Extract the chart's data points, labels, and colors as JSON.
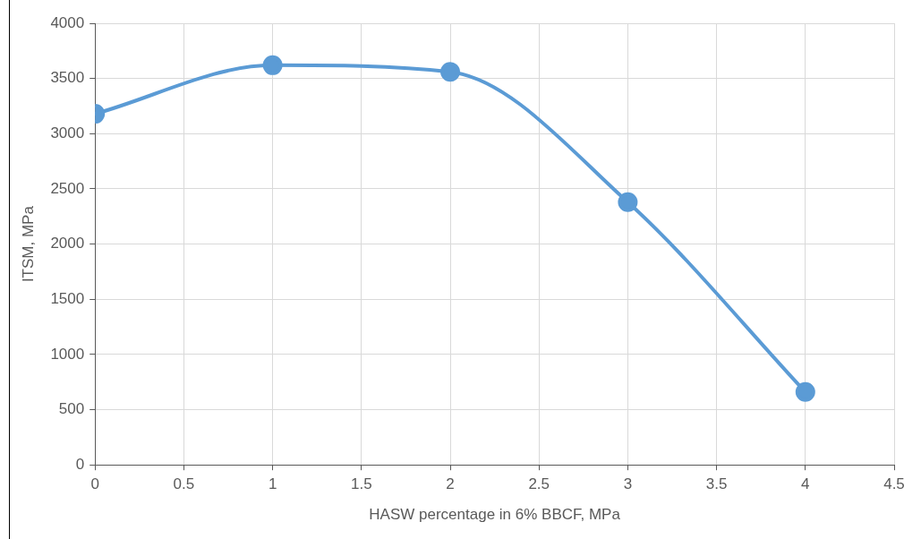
{
  "chart_data": {
    "type": "line",
    "xlabel": "HASW percentage in 6% BBCF, MPa",
    "ylabel": "ITSM, MPa",
    "x": [
      0,
      1,
      2,
      3,
      4
    ],
    "series": [
      {
        "color": "#5b9bd5",
        "values": [
          3180,
          3620,
          3560,
          2380,
          660
        ]
      }
    ],
    "xlim": [
      0,
      4.5
    ],
    "xticks": [
      0,
      0.5,
      1,
      1.5,
      2,
      2.5,
      3,
      3.5,
      4,
      4.5
    ],
    "ylim": [
      0,
      4000
    ],
    "yticks": [
      0,
      500,
      1000,
      1500,
      2000,
      2500,
      3000,
      3500,
      4000
    ],
    "grid": true,
    "legend": false,
    "marker": "circle",
    "line_style": "solid"
  }
}
